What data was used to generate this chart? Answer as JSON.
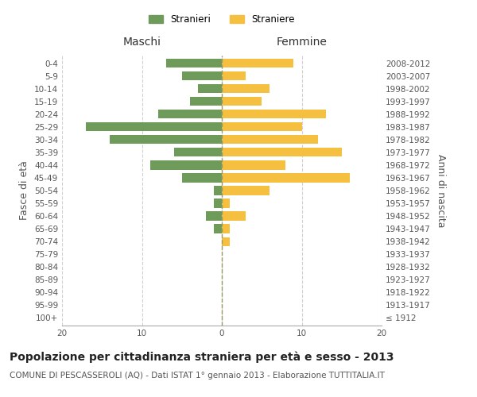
{
  "age_groups": [
    "100+",
    "95-99",
    "90-94",
    "85-89",
    "80-84",
    "75-79",
    "70-74",
    "65-69",
    "60-64",
    "55-59",
    "50-54",
    "45-49",
    "40-44",
    "35-39",
    "30-34",
    "25-29",
    "20-24",
    "15-19",
    "10-14",
    "5-9",
    "0-4"
  ],
  "birth_years": [
    "≤ 1912",
    "1913-1917",
    "1918-1922",
    "1923-1927",
    "1928-1932",
    "1933-1937",
    "1938-1942",
    "1943-1947",
    "1948-1952",
    "1953-1957",
    "1958-1962",
    "1963-1967",
    "1968-1972",
    "1973-1977",
    "1978-1982",
    "1983-1987",
    "1988-1992",
    "1993-1997",
    "1998-2002",
    "2003-2007",
    "2008-2012"
  ],
  "maschi": [
    0,
    0,
    0,
    0,
    0,
    0,
    0,
    1,
    2,
    1,
    1,
    5,
    9,
    6,
    14,
    17,
    8,
    4,
    3,
    5,
    7
  ],
  "femmine": [
    0,
    0,
    0,
    0,
    0,
    0,
    1,
    1,
    3,
    1,
    6,
    16,
    8,
    15,
    12,
    10,
    13,
    5,
    6,
    3,
    9
  ],
  "maschi_color": "#6e9b5a",
  "femmine_color": "#f5c040",
  "background_color": "#ffffff",
  "grid_color": "#d0d0d0",
  "title": "Popolazione per cittadinanza straniera per età e sesso - 2013",
  "subtitle": "COMUNE DI PESCASSEROLI (AQ) - Dati ISTAT 1° gennaio 2013 - Elaborazione TUTTITALIA.IT",
  "ylabel_left": "Fasce di età",
  "ylabel_right": "Anni di nascita",
  "xlabel_maschi": "Maschi",
  "xlabel_femmine": "Femmine",
  "legend_maschi": "Stranieri",
  "legend_femmine": "Straniere",
  "xlim": 20,
  "title_fontsize": 10,
  "subtitle_fontsize": 7.5,
  "axis_label_fontsize": 9,
  "tick_fontsize": 7.5
}
